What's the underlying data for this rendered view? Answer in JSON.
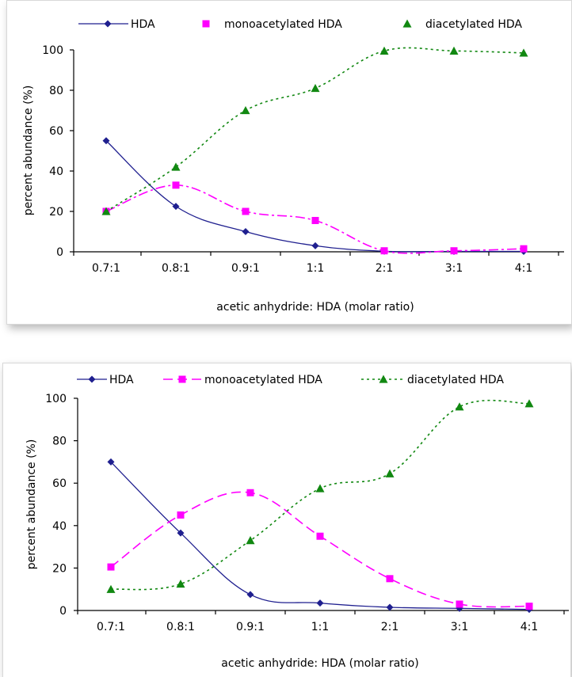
{
  "colors": {
    "hda": "#1f1f8f",
    "mono": "#ff00ff",
    "di": "#118811",
    "axis": "#000000"
  },
  "chart_data": [
    {
      "type": "line",
      "categories": [
        "0.7:1",
        "0.8:1",
        "0.9:1",
        "1:1",
        "2:1",
        "3:1",
        "4:1"
      ],
      "series": [
        {
          "name": "HDA",
          "values": [
            55,
            22.5,
            10,
            3,
            0.3,
            0.2,
            0.2
          ],
          "marker": "diamond",
          "line": "solid"
        },
        {
          "name": "monoacetylated HDA",
          "values": [
            20,
            33,
            20,
            15.5,
            0.5,
            0.5,
            1.5
          ],
          "marker": "square",
          "line": "dashdot"
        },
        {
          "name": "diacetylated HDA",
          "values": [
            20,
            42,
            70,
            81,
            99.5,
            99.5,
            98.5
          ],
          "marker": "triangle",
          "line": "dotted"
        }
      ],
      "xlabel": "acetic anhydride: HDA (molar ratio)",
      "ylabel": "percent abundance (%)",
      "ylim": [
        0,
        100
      ],
      "yticks": [
        0,
        20,
        40,
        60,
        80,
        100
      ],
      "grid": false,
      "legend_position": "top"
    },
    {
      "type": "line",
      "categories": [
        "0.7:1",
        "0.8:1",
        "0.9:1",
        "1:1",
        "2:1",
        "3:1",
        "4:1"
      ],
      "series": [
        {
          "name": "HDA",
          "values": [
            70,
            36.5,
            7.5,
            3.5,
            1.5,
            1,
            0.5
          ],
          "marker": "diamond",
          "line": "solid"
        },
        {
          "name": "monoacetylated HDA",
          "values": [
            20.5,
            45,
            55.5,
            35,
            15,
            3,
            2
          ],
          "marker": "square",
          "line": "dashed"
        },
        {
          "name": "diacetylated HDA",
          "values": [
            10,
            12.5,
            33,
            57.5,
            64.5,
            96,
            97.5
          ],
          "marker": "triangle",
          "line": "dotted"
        }
      ],
      "xlabel": "acetic anhydride: HDA (molar ratio)",
      "ylabel": "percent abundance (%)",
      "ylim": [
        0,
        100
      ],
      "yticks": [
        0,
        20,
        40,
        60,
        80,
        100
      ],
      "grid": false,
      "legend_position": "top"
    }
  ]
}
